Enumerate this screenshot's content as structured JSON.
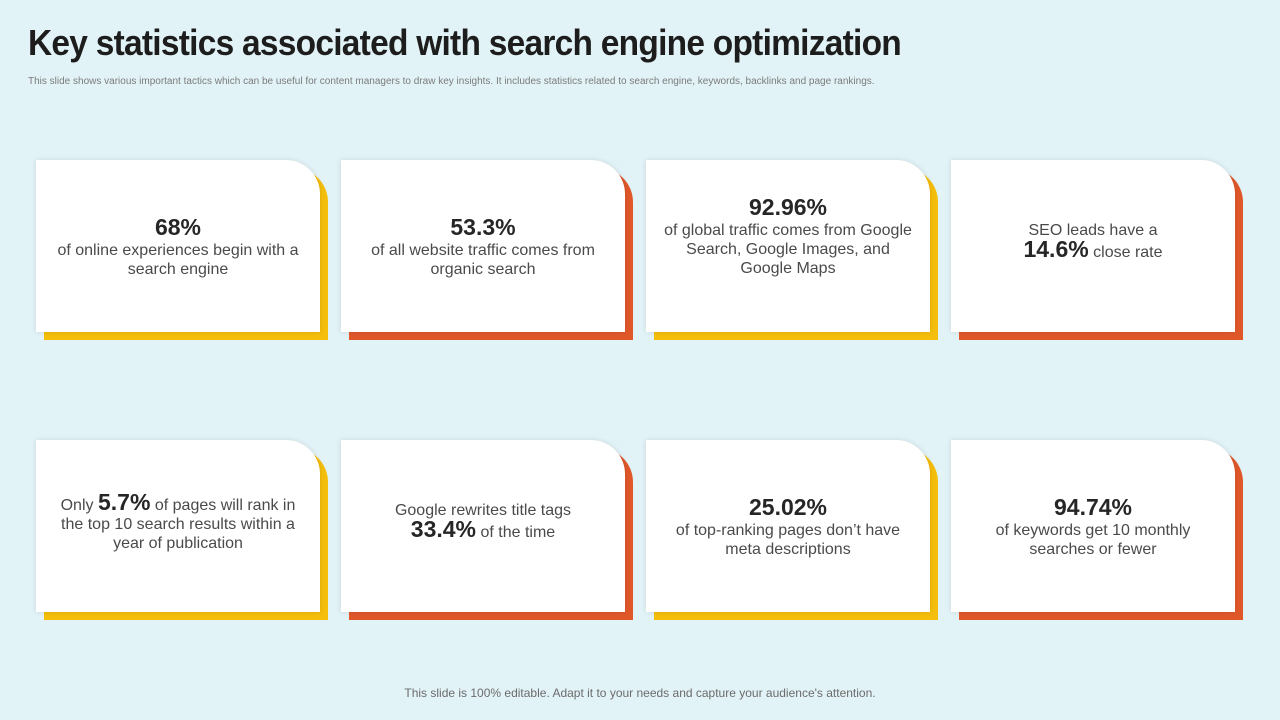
{
  "title": "Key statistics associated with search engine optimization",
  "subtitle": "This slide shows various important tactics which can be useful for content managers to draw key insights. It includes statistics related to search engine, keywords, backlinks and page rankings.",
  "cards": [
    {
      "stat": "68%",
      "text": "of online experiences begin with a search engine",
      "accent": "#f5be0b"
    },
    {
      "stat": "53.3%",
      "text": "of all website traffic comes from organic search",
      "accent": "#e0582a"
    },
    {
      "stat": "92.96%",
      "text": "of global traffic comes from Google Search, Google Images, and Google Maps",
      "accent": "#f5be0b"
    },
    {
      "pre": "SEO leads have a",
      "stat": "14.6%",
      "post": "close rate",
      "accent": "#e0582a"
    },
    {
      "pre": "Only",
      "stat": "5.7%",
      "post": "of pages will rank in the top 10 search results within a year of publication",
      "accent": "#f5be0b"
    },
    {
      "pre": "Google rewrites title tags",
      "stat": "33.4%",
      "post": "of the time",
      "accent": "#e0582a"
    },
    {
      "stat": "25.02%",
      "text": "of top-ranking pages don’t have meta descriptions",
      "accent": "#f5be0b"
    },
    {
      "stat": "94.74%",
      "text": "of keywords get 10 monthly searches or fewer",
      "accent": "#e0582a"
    }
  ],
  "footer": "This slide is 100% editable. Adapt it to your needs and capture your audience's attention."
}
